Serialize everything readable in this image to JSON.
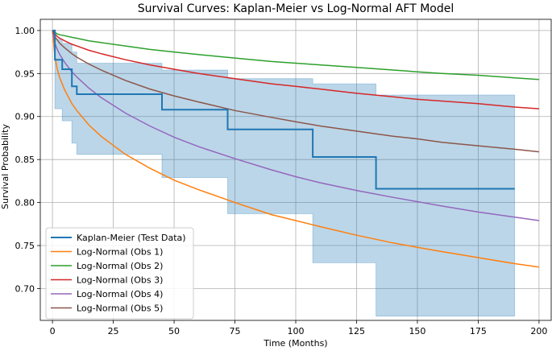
{
  "chart_data": {
    "type": "line",
    "title": "Survival Curves: Kaplan-Meier vs Log-Normal AFT Model",
    "xlabel": "Time (Months)",
    "ylabel": "Survival Probability",
    "xlim": [
      -5,
      205
    ],
    "ylim": [
      0.663,
      1.013
    ],
    "xticks": [
      0,
      25,
      50,
      75,
      100,
      125,
      150,
      175,
      200
    ],
    "yticks": [
      0.7,
      0.75,
      0.8,
      0.85,
      0.9,
      0.95,
      1.0
    ],
    "xtick_labels": [
      "0",
      "25",
      "50",
      "75",
      "100",
      "125",
      "150",
      "175",
      "200"
    ],
    "ytick_labels": [
      "0.70",
      "0.75",
      "0.80",
      "0.85",
      "0.90",
      "0.95",
      "1.00"
    ],
    "grid": true,
    "legend_position": "lower-left",
    "kaplan_meier": {
      "name": "Kaplan-Meier (Test Data)",
      "color": "#1f77b4",
      "band_color": "#1f77b4",
      "steps": [
        [
          0,
          1.0
        ],
        [
          1,
          0.966
        ],
        [
          4,
          0.955
        ],
        [
          8,
          0.935
        ],
        [
          10,
          0.926
        ],
        [
          45,
          0.908
        ],
        [
          72,
          0.885
        ],
        [
          107,
          0.853
        ],
        [
          133,
          0.816
        ],
        [
          190,
          0.816
        ]
      ],
      "ci": [
        [
          0,
          1.0,
          1.0
        ],
        [
          1,
          0.909,
          0.99
        ],
        [
          4,
          0.895,
          0.985
        ],
        [
          8,
          0.869,
          0.975
        ],
        [
          10,
          0.856,
          0.962
        ],
        [
          45,
          0.829,
          0.954
        ],
        [
          72,
          0.787,
          0.944
        ],
        [
          107,
          0.73,
          0.938
        ],
        [
          133,
          0.668,
          0.925
        ],
        [
          190,
          0.668,
          0.903
        ]
      ]
    },
    "series": [
      {
        "name": "Log-Normal (Obs 1)",
        "color": "#ff7f0e",
        "x": [
          0,
          1,
          2,
          3,
          5,
          8,
          10,
          15,
          20,
          30,
          40,
          50,
          60,
          75,
          90,
          100,
          110,
          125,
          140,
          150,
          160,
          175,
          190,
          200
        ],
        "values": [
          1.0,
          0.97,
          0.955,
          0.945,
          0.931,
          0.915,
          0.907,
          0.89,
          0.877,
          0.856,
          0.84,
          0.826,
          0.815,
          0.8,
          0.786,
          0.779,
          0.772,
          0.762,
          0.753,
          0.748,
          0.743,
          0.736,
          0.729,
          0.725
        ]
      },
      {
        "name": "Log-Normal (Obs 2)",
        "color": "#2ca02c",
        "x": [
          0,
          1,
          2,
          3,
          5,
          8,
          10,
          15,
          20,
          30,
          40,
          50,
          60,
          75,
          90,
          100,
          110,
          125,
          140,
          150,
          160,
          175,
          190,
          200
        ],
        "values": [
          1.0,
          0.998,
          0.996,
          0.995,
          0.994,
          0.992,
          0.991,
          0.988,
          0.986,
          0.982,
          0.978,
          0.975,
          0.972,
          0.968,
          0.964,
          0.962,
          0.96,
          0.957,
          0.954,
          0.952,
          0.95,
          0.948,
          0.945,
          0.943
        ]
      },
      {
        "name": "Log-Normal (Obs 3)",
        "color": "#d62728",
        "x": [
          0,
          1,
          2,
          3,
          5,
          8,
          10,
          15,
          20,
          30,
          40,
          50,
          60,
          75,
          90,
          100,
          110,
          125,
          140,
          150,
          160,
          175,
          190,
          200
        ],
        "values": [
          1.0,
          0.996,
          0.993,
          0.991,
          0.988,
          0.984,
          0.982,
          0.977,
          0.973,
          0.966,
          0.96,
          0.955,
          0.95,
          0.944,
          0.938,
          0.935,
          0.932,
          0.927,
          0.923,
          0.92,
          0.918,
          0.915,
          0.911,
          0.909
        ]
      },
      {
        "name": "Log-Normal (Obs 4)",
        "color": "#9467bd",
        "x": [
          0,
          1,
          2,
          3,
          5,
          8,
          10,
          15,
          20,
          30,
          40,
          50,
          60,
          75,
          90,
          100,
          110,
          125,
          140,
          150,
          160,
          175,
          190,
          200
        ],
        "values": [
          1.0,
          0.985,
          0.978,
          0.972,
          0.963,
          0.952,
          0.946,
          0.933,
          0.922,
          0.904,
          0.889,
          0.876,
          0.865,
          0.851,
          0.838,
          0.83,
          0.823,
          0.814,
          0.806,
          0.801,
          0.796,
          0.789,
          0.783,
          0.779
        ]
      },
      {
        "name": "Log-Normal (Obs 5)",
        "color": "#8c564b",
        "x": [
          0,
          1,
          2,
          3,
          5,
          8,
          10,
          15,
          20,
          30,
          40,
          50,
          60,
          75,
          90,
          100,
          110,
          125,
          140,
          150,
          160,
          175,
          190,
          200
        ],
        "values": [
          1.0,
          0.993,
          0.989,
          0.985,
          0.98,
          0.973,
          0.969,
          0.961,
          0.954,
          0.942,
          0.932,
          0.924,
          0.917,
          0.907,
          0.899,
          0.894,
          0.889,
          0.883,
          0.877,
          0.874,
          0.87,
          0.866,
          0.862,
          0.859
        ]
      }
    ]
  }
}
